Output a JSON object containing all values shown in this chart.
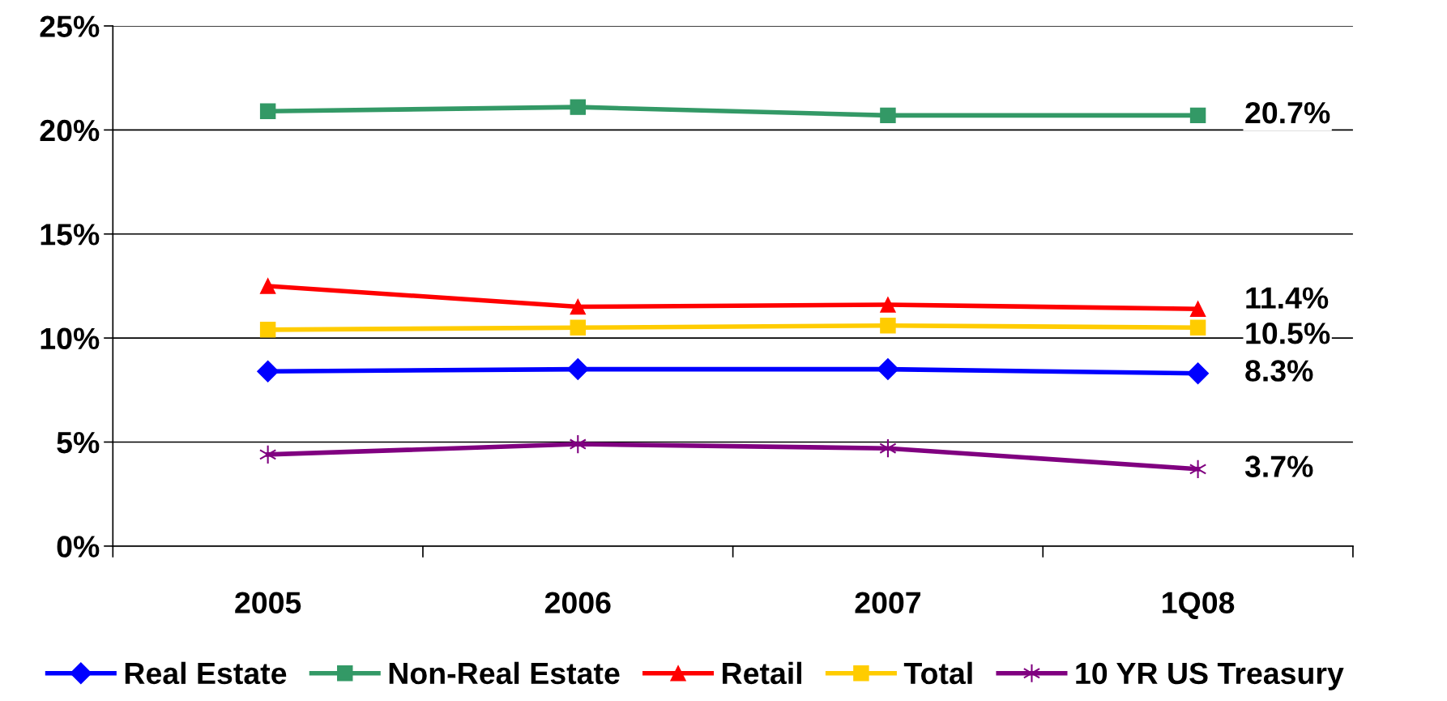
{
  "chart_data": {
    "type": "line",
    "categories": [
      "2005",
      "2006",
      "2007",
      "1Q08"
    ],
    "series": [
      {
        "name": "Real Estate",
        "color": "#0000ff",
        "marker": "diamond",
        "values": [
          8.4,
          8.5,
          8.5,
          8.3
        ],
        "value_labels": [
          null,
          null,
          null,
          "8.3%"
        ]
      },
      {
        "name": "Non-Real Estate",
        "color": "#339966",
        "marker": "square",
        "values": [
          20.9,
          21.1,
          20.7,
          20.7
        ],
        "value_labels": [
          null,
          null,
          null,
          "20.7%"
        ]
      },
      {
        "name": "Retail",
        "color": "#ff0000",
        "marker": "triangle",
        "values": [
          12.5,
          11.5,
          11.6,
          11.4
        ],
        "value_labels": [
          null,
          null,
          null,
          "11.4%"
        ]
      },
      {
        "name": "Total",
        "color": "#ffcc00",
        "marker": "square",
        "values": [
          10.4,
          10.5,
          10.6,
          10.5
        ],
        "value_labels": [
          null,
          null,
          null,
          "10.5%"
        ]
      },
      {
        "name": "10 YR US Treasury",
        "color": "#800080",
        "marker": "cross",
        "values": [
          4.4,
          4.9,
          4.7,
          3.7
        ],
        "value_labels": [
          null,
          null,
          null,
          "3.7%"
        ]
      }
    ],
    "ylim": [
      0,
      25
    ],
    "yticks": [
      {
        "value": 0,
        "label": "0%"
      },
      {
        "value": 5,
        "label": "5%"
      },
      {
        "value": 10,
        "label": "10%"
      },
      {
        "value": 15,
        "label": "15%"
      },
      {
        "value": 20,
        "label": "20%"
      },
      {
        "value": 25,
        "label": "25%"
      }
    ],
    "grid": "y",
    "legend": "bottom",
    "line_style": "solid"
  }
}
